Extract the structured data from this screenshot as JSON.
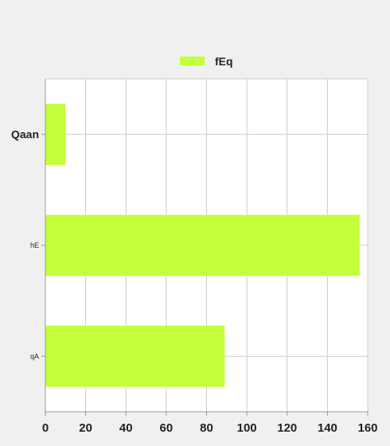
{
  "chart_data": {
    "type": "bar",
    "orientation": "horizontal",
    "categories": [
      "Qaan",
      "hE",
      "qA"
    ],
    "series": [
      {
        "name": "fEq",
        "values": [
          10,
          156,
          89
        ],
        "color": "#c3ff3a"
      }
    ],
    "xlim": [
      0,
      160
    ],
    "x_ticks": [
      0,
      20,
      40,
      60,
      80,
      100,
      120,
      140,
      160
    ],
    "grid": true,
    "legend_position": "top-center",
    "title": "",
    "xlabel": "",
    "ylabel": ""
  }
}
